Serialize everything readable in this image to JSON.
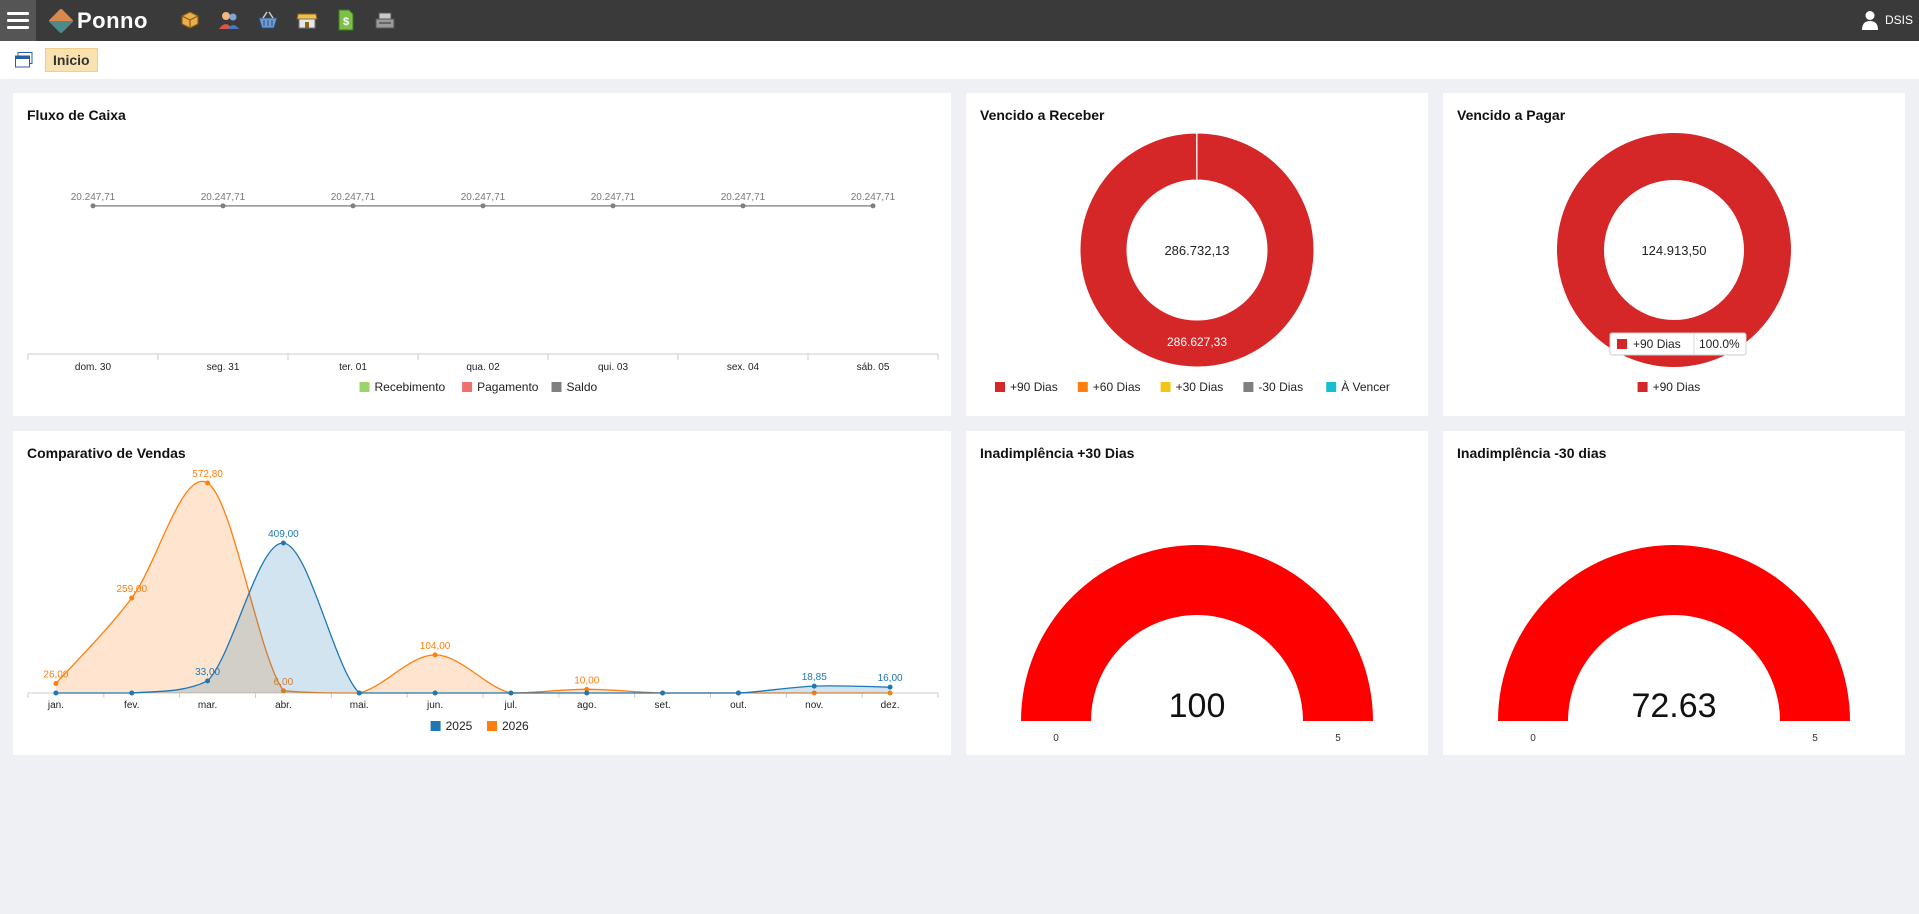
{
  "app": {
    "name": "Ponno",
    "user": "DSIS"
  },
  "toolbar": {
    "icons": [
      "box-icon",
      "users-icon",
      "basket-icon",
      "store-icon",
      "dollar-document-icon",
      "cash-register-icon"
    ]
  },
  "tabs": {
    "home": "Inicio"
  },
  "panels": {
    "fluxo": {
      "title": "Fluxo de Caixa",
      "categories": [
        "dom. 30",
        "seg. 31",
        "ter. 01",
        "qua. 02",
        "qui. 03",
        "sex. 04",
        "sáb. 05"
      ],
      "point_labels": [
        "20.247,71",
        "20.247,71",
        "20.247,71",
        "20.247,71",
        "20.247,71",
        "20.247,71",
        "20.247,71"
      ],
      "legend": [
        "Recebimento",
        "Pagamento",
        "Saldo"
      ]
    },
    "receber": {
      "title": "Vencido a Receber",
      "center": "286.732,13",
      "slice_label": "286.627,33",
      "legend": [
        "+90 Dias",
        "+60 Dias",
        "+30 Dias",
        "-30 Dias",
        "À Vencer"
      ]
    },
    "pagar": {
      "title": "Vencido a Pagar",
      "center": "124.913,50",
      "tooltip_label": "+90 Dias",
      "tooltip_value": "100.0%",
      "legend": [
        "+90 Dias"
      ]
    },
    "vendas": {
      "title": "Comparativo de Vendas",
      "categories": [
        "jan.",
        "fev.",
        "mar.",
        "abr.",
        "mai.",
        "jun.",
        "jul.",
        "ago.",
        "set.",
        "out.",
        "nov.",
        "dez."
      ],
      "legend": [
        "2025",
        "2026"
      ],
      "labels_2025": [
        "",
        "",
        "33,00",
        "409,00",
        "",
        "",
        "",
        "",
        "",
        "",
        "18,85",
        "16,00"
      ],
      "labels_2026": [
        "26,00",
        "259,00",
        "572,80",
        "6,00",
        "",
        "104,00",
        "",
        "10,00",
        "",
        "",
        "",
        ""
      ]
    },
    "inad30": {
      "title": "Inadimplência +30 Dias",
      "value": "100",
      "min": "0",
      "max": "5"
    },
    "inadm30": {
      "title": "Inadimplência -30 dias",
      "value": "72.63",
      "min": "0",
      "max": "5"
    }
  },
  "chart_data": [
    {
      "type": "line",
      "title": "Fluxo de Caixa",
      "categories": [
        "dom. 30",
        "seg. 31",
        "ter. 01",
        "qua. 02",
        "qui. 03",
        "sex. 04",
        "sáb. 05"
      ],
      "series": [
        {
          "name": "Recebimento",
          "values": [
            0,
            0,
            0,
            0,
            0,
            0,
            0
          ]
        },
        {
          "name": "Pagamento",
          "values": [
            0,
            0,
            0,
            0,
            0,
            0,
            0
          ]
        },
        {
          "name": "Saldo",
          "values": [
            20247.71,
            20247.71,
            20247.71,
            20247.71,
            20247.71,
            20247.71,
            20247.71
          ]
        }
      ],
      "colors": {
        "Recebimento": "#9ed36a",
        "Pagamento": "#ef6f6c",
        "Saldo": "#808080"
      }
    },
    {
      "type": "pie",
      "title": "Vencido a Receber",
      "labels": [
        "+90 Dias",
        "+60 Dias",
        "+30 Dias",
        "-30 Dias",
        "À Vencer"
      ],
      "values": [
        286627.33,
        104.8,
        0,
        0,
        0
      ],
      "colors": [
        "#d62728",
        "#ff7f0e",
        "#f2c618",
        "#7f7f7f",
        "#17becf"
      ]
    },
    {
      "type": "pie",
      "title": "Vencido a Pagar",
      "labels": [
        "+90 Dias"
      ],
      "values": [
        124913.5
      ],
      "colors": [
        "#d62728"
      ]
    },
    {
      "type": "area",
      "title": "Comparativo de Vendas",
      "categories": [
        "jan.",
        "fev.",
        "mar.",
        "abr.",
        "mai.",
        "jun.",
        "jul.",
        "ago.",
        "set.",
        "out.",
        "nov.",
        "dez."
      ],
      "series": [
        {
          "name": "2025",
          "values": [
            0,
            0,
            33,
            409,
            0,
            0,
            0,
            0,
            0,
            0,
            18.85,
            16
          ],
          "color": "#1f77b4"
        },
        {
          "name": "2026",
          "values": [
            26,
            259,
            572.8,
            6,
            0,
            104,
            0,
            10,
            0,
            0,
            0,
            0
          ],
          "color": "#ff7f0e"
        }
      ],
      "ylim": [
        0,
        600
      ]
    },
    {
      "type": "gauge",
      "title": "Inadimplência +30 Dias",
      "value": 100,
      "min": 0,
      "max": 5,
      "color": "#ff0000"
    },
    {
      "type": "gauge",
      "title": "Inadimplência -30 dias",
      "value": 72.63,
      "min": 0,
      "max": 5,
      "color": "#ff0000"
    }
  ]
}
